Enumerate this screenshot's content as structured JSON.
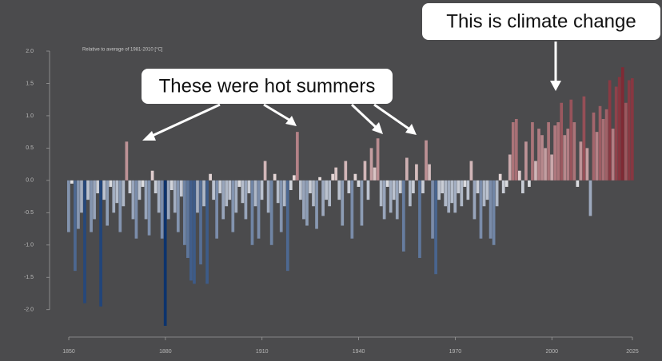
{
  "chart_data": {
    "type": "bar",
    "subtitle": "Relative to average of 1981-2010 [°C]",
    "annotations": [
      "These were hot summers",
      "This is climate change"
    ],
    "x": [
      1850,
      1851,
      1852,
      1853,
      1854,
      1855,
      1856,
      1857,
      1858,
      1859,
      1860,
      1861,
      1862,
      1863,
      1864,
      1865,
      1866,
      1867,
      1868,
      1869,
      1870,
      1871,
      1872,
      1873,
      1874,
      1875,
      1876,
      1877,
      1878,
      1879,
      1880,
      1881,
      1882,
      1883,
      1884,
      1885,
      1886,
      1887,
      1888,
      1889,
      1890,
      1891,
      1892,
      1893,
      1894,
      1895,
      1896,
      1897,
      1898,
      1899,
      1900,
      1901,
      1902,
      1903,
      1904,
      1905,
      1906,
      1907,
      1908,
      1909,
      1910,
      1911,
      1912,
      1913,
      1914,
      1915,
      1916,
      1917,
      1918,
      1919,
      1920,
      1921,
      1922,
      1923,
      1924,
      1925,
      1926,
      1927,
      1928,
      1929,
      1930,
      1931,
      1932,
      1933,
      1934,
      1935,
      1936,
      1937,
      1938,
      1939,
      1940,
      1941,
      1942,
      1943,
      1944,
      1945,
      1946,
      1947,
      1948,
      1949,
      1950,
      1951,
      1952,
      1953,
      1954,
      1955,
      1956,
      1957,
      1958,
      1959,
      1960,
      1961,
      1962,
      1963,
      1964,
      1965,
      1966,
      1967,
      1968,
      1969,
      1970,
      1971,
      1972,
      1973,
      1974,
      1975,
      1976,
      1977,
      1978,
      1979,
      1980,
      1981,
      1982,
      1983,
      1984,
      1985,
      1986,
      1987,
      1988,
      1989,
      1990,
      1991,
      1992,
      1993,
      1994,
      1995,
      1996,
      1997,
      1998,
      1999,
      2000,
      2001,
      2002,
      2003,
      2004,
      2005,
      2006,
      2007,
      2008,
      2009,
      2010,
      2011,
      2012,
      2013,
      2014,
      2015,
      2016,
      2017,
      2018,
      2019,
      2020,
      2021,
      2022,
      2023,
      2024,
      2025
    ],
    "values": [
      -0.8,
      -0.05,
      -1.4,
      -0.75,
      -0.5,
      -1.9,
      -0.3,
      -0.8,
      -0.6,
      -0.2,
      -1.95,
      -0.3,
      -0.7,
      -0.1,
      -0.5,
      -0.35,
      -0.8,
      -0.4,
      0.6,
      -0.2,
      -0.6,
      -0.9,
      -0.3,
      -0.1,
      -0.6,
      -0.85,
      0.15,
      -0.2,
      -0.5,
      -0.9,
      -2.25,
      -0.6,
      -0.15,
      -0.5,
      -0.8,
      -0.25,
      -1.0,
      -1.2,
      -1.55,
      -1.6,
      -0.5,
      -1.3,
      -0.4,
      -1.6,
      0.1,
      -0.3,
      -0.9,
      -0.2,
      -0.6,
      -0.4,
      -0.3,
      -0.8,
      -0.5,
      -0.1,
      -0.35,
      -0.6,
      -0.2,
      -1.0,
      -0.4,
      -0.9,
      -0.3,
      0.3,
      -0.5,
      -1.0,
      0.1,
      -0.35,
      -0.8,
      -0.4,
      -1.4,
      -0.15,
      0.08,
      0.75,
      -0.3,
      -0.6,
      -0.7,
      -0.2,
      -0.4,
      -0.75,
      0.05,
      -0.55,
      -0.3,
      -0.4,
      0.1,
      0.2,
      -0.3,
      -0.7,
      0.3,
      -0.2,
      -0.9,
      0.1,
      -0.1,
      -0.7,
      0.3,
      -0.3,
      0.5,
      0.2,
      0.65,
      -0.4,
      -0.6,
      -0.1,
      -0.5,
      -0.3,
      -0.6,
      -0.2,
      -1.1,
      0.35,
      -0.4,
      -0.2,
      0.25,
      -1.2,
      -0.2,
      0.62,
      0.25,
      -0.9,
      -1.45,
      -0.3,
      -0.2,
      -0.4,
      -0.5,
      -0.35,
      -0.5,
      -0.2,
      -0.4,
      -0.1,
      -0.3,
      0.3,
      -0.6,
      -0.2,
      -0.9,
      -0.4,
      -0.3,
      -0.9,
      -1.0,
      -0.4,
      0.1,
      -0.2,
      -0.1,
      0.4,
      0.9,
      0.95,
      0.15,
      -0.2,
      0.6,
      -0.1,
      0.9,
      0.3,
      0.8,
      0.7,
      0.5,
      0.9,
      0.4,
      0.85,
      0.9,
      1.2,
      0.7,
      0.8,
      1.25,
      0.9,
      -0.1,
      0.6,
      1.3,
      0.5,
      -0.55,
      1.05,
      0.75,
      1.15,
      0.95,
      1.1,
      1.55,
      0.8,
      1.45,
      1.6,
      1.75,
      1.2,
      1.55,
      1.58
    ],
    "colors": {
      "cold": "#08306b",
      "neutral": "#f4f0ee",
      "hot": "#67000d"
    },
    "xlim": [
      1850,
      2025
    ],
    "xticks": [
      1850,
      1880,
      1910,
      1940,
      1970,
      2000,
      2025
    ],
    "ylim": [
      -2.3,
      2.0
    ],
    "yticks": [
      {
        "value": 2,
        "label": "2.0"
      },
      1.5,
      {
        "value": 1,
        "label": "1.0"
      },
      0.5,
      {
        "value": 0,
        "label": "0.0"
      },
      -0.5,
      {
        "value": -1,
        "label": "-1.0"
      },
      -1.5,
      {
        "value": -2,
        "label": "-2.0"
      }
    ]
  }
}
